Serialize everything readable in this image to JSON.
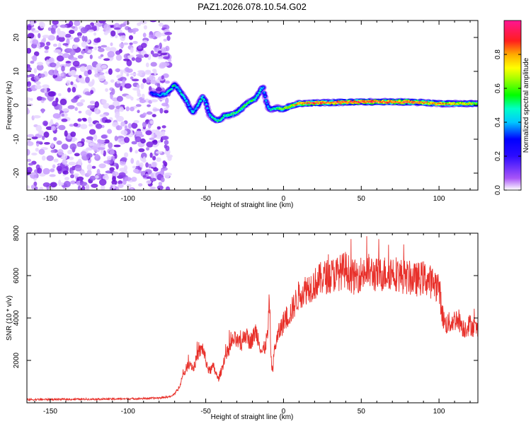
{
  "figure_title": "PAZ1.2026.078.10.54.G02",
  "chart_data": [
    {
      "type": "heatmap",
      "name": "spectrogram",
      "title": "PAZ1.2026.078.10.54.G02",
      "xlabel": "Height of straight line (km)",
      "ylabel": "Frequency (Hz)",
      "xlim": [
        -165,
        125
      ],
      "ylim": [
        -25,
        25
      ],
      "xticks": [
        -150,
        -100,
        -50,
        0,
        50,
        100
      ],
      "yticks": [
        -20,
        -10,
        0,
        10,
        20
      ],
      "colorbar": {
        "label": "Normalized spectral amplitude",
        "range": [
          0.0,
          1.0
        ],
        "ticks": [
          0.0,
          0.2,
          0.4,
          0.6,
          0.8
        ],
        "colormap": [
          "#ffffff",
          "#8a2be2",
          "#0000ff",
          "#00ffff",
          "#00ff00",
          "#ffff00",
          "#ff0000",
          "#ff1493"
        ]
      },
      "noise_region_xrange": [
        -165,
        -73
      ],
      "main_trace": {
        "x": [
          -85,
          -80,
          -75,
          -72,
          -70,
          -68,
          -65,
          -62,
          -60,
          -58,
          -55,
          -52,
          -50,
          -48,
          -45,
          -42,
          -40,
          -38,
          -35,
          -32,
          -30,
          -27,
          -25,
          -22,
          -20,
          -18,
          -16,
          -14,
          -13,
          -12,
          -11,
          -10,
          -9,
          -8,
          -6,
          -4,
          -2,
          0,
          3,
          6,
          10,
          20,
          30,
          40,
          50,
          60,
          70,
          80,
          90,
          100,
          110,
          120,
          125
        ],
        "y": [
          3.5,
          3.0,
          3.5,
          5.0,
          6.0,
          5.0,
          3.0,
          1.0,
          -1.0,
          -2.0,
          0.0,
          2.5,
          1.0,
          -2.5,
          -4.0,
          -4.5,
          -4.0,
          -3.0,
          -3.0,
          -2.5,
          -2.0,
          -1.0,
          0.0,
          1.0,
          1.5,
          2.0,
          3.5,
          5.0,
          5.0,
          3.0,
          1.0,
          -0.5,
          -1.0,
          -1.2,
          -1.0,
          -0.8,
          -1.0,
          -1.0,
          -0.5,
          0.0,
          0.5,
          0.7,
          0.8,
          0.9,
          1.0,
          1.0,
          1.0,
          1.0,
          0.8,
          0.5,
          0.5,
          0.5,
          0.5
        ],
        "intensity": [
          0.3,
          0.4,
          0.45,
          0.55,
          0.5,
          0.45,
          0.5,
          0.45,
          0.4,
          0.45,
          0.45,
          0.5,
          0.45,
          0.4,
          0.5,
          0.5,
          0.55,
          0.5,
          0.55,
          0.6,
          0.55,
          0.6,
          0.6,
          0.55,
          0.6,
          0.5,
          0.5,
          0.45,
          0.4,
          0.4,
          0.4,
          0.4,
          0.45,
          0.5,
          0.5,
          0.55,
          0.6,
          0.65,
          0.7,
          0.75,
          0.85,
          0.9,
          0.9,
          0.9,
          0.95,
          0.95,
          0.9,
          0.95,
          0.85,
          0.8,
          0.75,
          0.7,
          0.6
        ]
      }
    },
    {
      "type": "line",
      "name": "snr",
      "xlabel": "Height of straight line (km)",
      "ylabel": "SNR (10 * v/v)",
      "xlim": [
        -165,
        125
      ],
      "ylim": [
        0,
        8000
      ],
      "xticks": [
        -150,
        -100,
        -50,
        0,
        50,
        100
      ],
      "yticks": [
        2000,
        4000,
        6000,
        8000
      ],
      "line_color": "#e8302a",
      "series": [
        {
          "name": "SNR",
          "x": [
            -165,
            -150,
            -130,
            -110,
            -90,
            -80,
            -72,
            -68,
            -65,
            -62,
            -60,
            -58,
            -55,
            -52,
            -50,
            -48,
            -45,
            -42,
            -40,
            -38,
            -35,
            -32,
            -30,
            -27,
            -25,
            -22,
            -20,
            -18,
            -16,
            -14,
            -12,
            -10,
            -9,
            -8,
            -7,
            -6,
            -5,
            -3,
            0,
            3,
            5,
            8,
            10,
            15,
            20,
            25,
            30,
            35,
            40,
            45,
            50,
            55,
            60,
            65,
            70,
            75,
            80,
            85,
            90,
            95,
            100,
            102,
            104,
            108,
            112,
            116,
            120,
            125
          ],
          "y": [
            150,
            160,
            170,
            180,
            200,
            230,
            300,
            600,
            1200,
            1700,
            1900,
            1600,
            2300,
            2600,
            2000,
            1500,
            1700,
            1100,
            1500,
            2100,
            2500,
            3000,
            2900,
            2700,
            3300,
            2900,
            3000,
            3400,
            3000,
            2400,
            2600,
            3300,
            5000,
            2000,
            1500,
            2400,
            2800,
            3300,
            3800,
            4100,
            4300,
            4800,
            5100,
            5400,
            5600,
            5900,
            6000,
            6100,
            6300,
            5900,
            6100,
            6200,
            6000,
            6100,
            6200,
            6000,
            5900,
            5800,
            5900,
            5700,
            5500,
            4200,
            3700,
            3800,
            4000,
            3500,
            3700,
            3400
          ]
        }
      ]
    }
  ]
}
